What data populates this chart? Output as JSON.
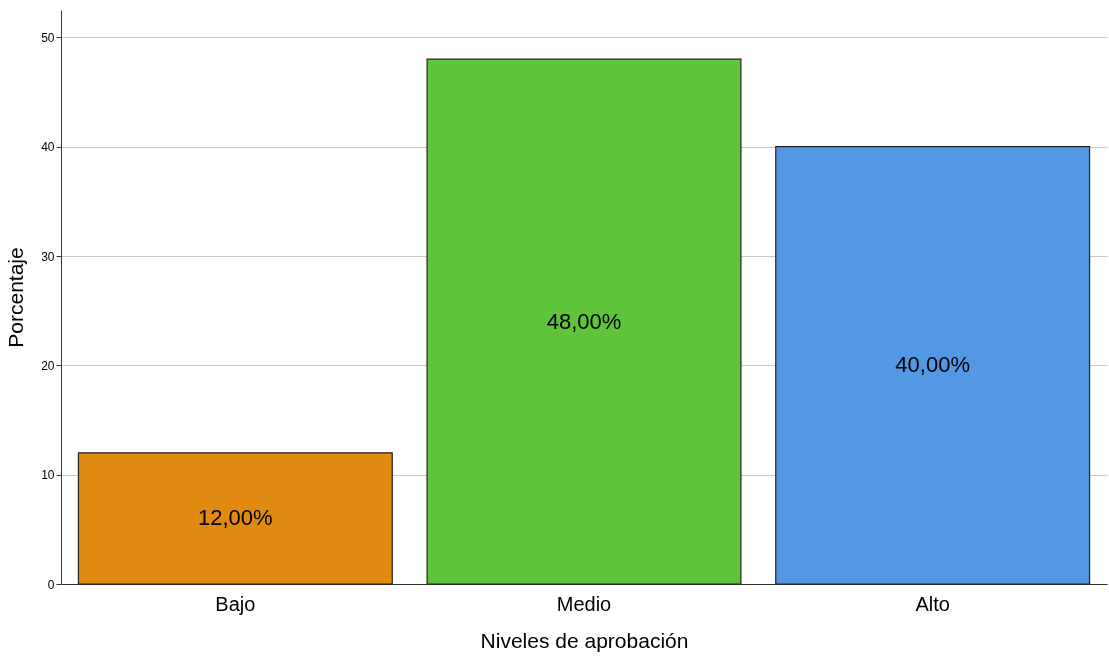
{
  "chart_data": {
    "type": "bar",
    "xlabel": "Niveles de aprobación",
    "ylabel": "Porcentaje",
    "categories": [
      "Bajo",
      "Medio",
      "Alto"
    ],
    "values": [
      12,
      48,
      40
    ],
    "colors": [
      "#e08a0f",
      "#5fc43a",
      "#5497e4"
    ],
    "value_labels": [
      "12,00%",
      "48,00%",
      "40,00%"
    ],
    "ylim": [
      0,
      52.5
    ],
    "yticks": [
      0,
      10,
      20,
      30,
      40,
      50
    ],
    "grid": "y"
  }
}
